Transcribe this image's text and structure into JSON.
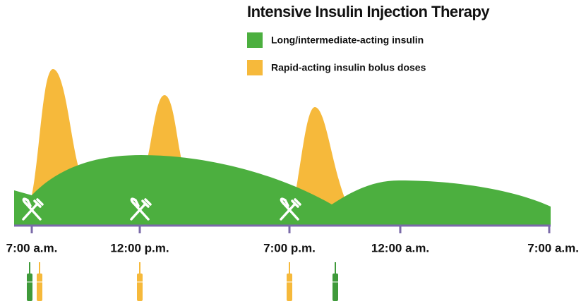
{
  "title": "Intensive Insulin Injection Therapy",
  "legend": [
    "Long/intermediate-acting insulin",
    "Rapid-acting insulin bolus doses"
  ],
  "time_labels": [
    "7:00 a.m.",
    "12:00 p.m.",
    "7:00 p.m.",
    "12:00 a.m.",
    "7:00 a.m."
  ]
}
